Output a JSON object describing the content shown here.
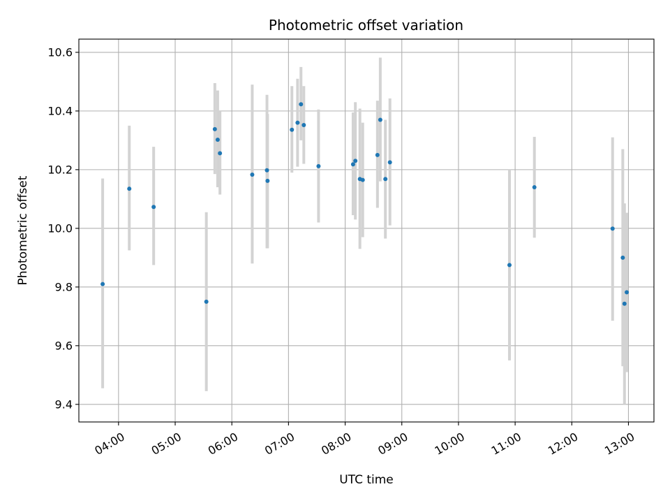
{
  "chart_data": {
    "type": "scatter",
    "title": "Photometric offset variation",
    "xlabel": "UTC time",
    "ylabel": "Photometric offset",
    "x_unit": "hours UTC",
    "xlim": [
      3.3,
      13.45
    ],
    "ylim": [
      9.34,
      10.645
    ],
    "xticks": [
      {
        "value": 4,
        "label": "04:00"
      },
      {
        "value": 5,
        "label": "05:00"
      },
      {
        "value": 6,
        "label": "06:00"
      },
      {
        "value": 7,
        "label": "07:00"
      },
      {
        "value": 8,
        "label": "08:00"
      },
      {
        "value": 9,
        "label": "09:00"
      },
      {
        "value": 10,
        "label": "10:00"
      },
      {
        "value": 11,
        "label": "11:00"
      },
      {
        "value": 12,
        "label": "12:00"
      },
      {
        "value": 13,
        "label": "13:00"
      }
    ],
    "yticks": [
      {
        "value": 9.4,
        "label": "9.4"
      },
      {
        "value": 9.6,
        "label": "9.6"
      },
      {
        "value": 9.8,
        "label": "9.8"
      },
      {
        "value": 10.0,
        "label": "10.0"
      },
      {
        "value": 10.2,
        "label": "10.2"
      },
      {
        "value": 10.4,
        "label": "10.4"
      },
      {
        "value": 10.6,
        "label": "10.6"
      }
    ],
    "grid": true,
    "point_color": "#1f77b4",
    "errorbar_color": "#d3d3d3",
    "points": [
      {
        "x": 3.72,
        "y": 9.81,
        "ylow": 9.455,
        "yhigh": 10.17
      },
      {
        "x": 4.19,
        "y": 10.135,
        "ylow": 9.925,
        "yhigh": 10.35
      },
      {
        "x": 4.62,
        "y": 10.073,
        "ylow": 9.875,
        "yhigh": 10.278
      },
      {
        "x": 5.55,
        "y": 9.75,
        "ylow": 9.445,
        "yhigh": 10.055
      },
      {
        "x": 5.7,
        "y": 10.338,
        "ylow": 10.185,
        "yhigh": 10.495
      },
      {
        "x": 5.75,
        "y": 10.302,
        "ylow": 10.14,
        "yhigh": 10.47
      },
      {
        "x": 5.79,
        "y": 10.256,
        "ylow": 10.115,
        "yhigh": 10.4
      },
      {
        "x": 6.36,
        "y": 10.183,
        "ylow": 9.88,
        "yhigh": 10.49
      },
      {
        "x": 6.62,
        "y": 10.198,
        "ylow": 9.932,
        "yhigh": 10.455
      },
      {
        "x": 6.63,
        "y": 10.162,
        "ylow": 9.932,
        "yhigh": 10.39
      },
      {
        "x": 7.06,
        "y": 10.336,
        "ylow": 10.19,
        "yhigh": 10.485
      },
      {
        "x": 7.16,
        "y": 10.36,
        "ylow": 10.21,
        "yhigh": 10.51
      },
      {
        "x": 7.22,
        "y": 10.423,
        "ylow": 10.3,
        "yhigh": 10.55
      },
      {
        "x": 7.27,
        "y": 10.352,
        "ylow": 10.22,
        "yhigh": 10.485
      },
      {
        "x": 7.53,
        "y": 10.212,
        "ylow": 10.02,
        "yhigh": 10.405
      },
      {
        "x": 8.14,
        "y": 10.218,
        "ylow": 10.045,
        "yhigh": 10.395
      },
      {
        "x": 8.18,
        "y": 10.23,
        "ylow": 10.03,
        "yhigh": 10.43
      },
      {
        "x": 8.26,
        "y": 10.168,
        "ylow": 9.93,
        "yhigh": 10.408
      },
      {
        "x": 8.31,
        "y": 10.165,
        "ylow": 9.97,
        "yhigh": 10.36
      },
      {
        "x": 8.57,
        "y": 10.25,
        "ylow": 10.07,
        "yhigh": 10.435
      },
      {
        "x": 8.62,
        "y": 10.37,
        "ylow": 10.16,
        "yhigh": 10.582
      },
      {
        "x": 8.71,
        "y": 10.168,
        "ylow": 9.965,
        "yhigh": 10.37
      },
      {
        "x": 8.79,
        "y": 10.225,
        "ylow": 10.01,
        "yhigh": 10.443
      },
      {
        "x": 10.9,
        "y": 9.875,
        "ylow": 9.55,
        "yhigh": 10.2
      },
      {
        "x": 11.34,
        "y": 10.14,
        "ylow": 9.968,
        "yhigh": 10.312
      },
      {
        "x": 12.72,
        "y": 9.999,
        "ylow": 9.685,
        "yhigh": 10.31
      },
      {
        "x": 12.9,
        "y": 9.9,
        "ylow": 9.53,
        "yhigh": 10.27
      },
      {
        "x": 12.93,
        "y": 9.743,
        "ylow": 9.4,
        "yhigh": 10.085
      },
      {
        "x": 12.97,
        "y": 9.782,
        "ylow": 9.51,
        "yhigh": 10.053
      }
    ]
  }
}
